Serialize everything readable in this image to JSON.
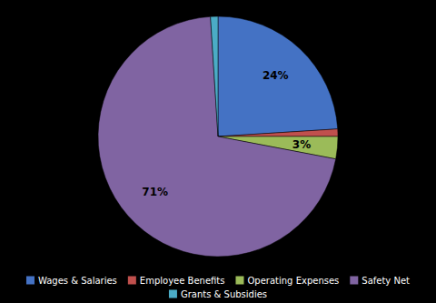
{
  "chart_data": {
    "type": "pie",
    "categories": [
      "Wages & Salaries",
      "Employee Benefits",
      "Operating Expenses",
      "Safety Net",
      "Grants & Subsidies"
    ],
    "values": [
      24,
      1,
      3,
      71,
      1
    ],
    "value_labels": [
      "24%",
      null,
      "3%",
      "71%",
      null
    ],
    "colors": [
      "#4472C4",
      "#C0504D",
      "#9BBB59",
      "#8064A2",
      "#4BACC6"
    ],
    "data_labels": true,
    "legend": "bottom"
  }
}
